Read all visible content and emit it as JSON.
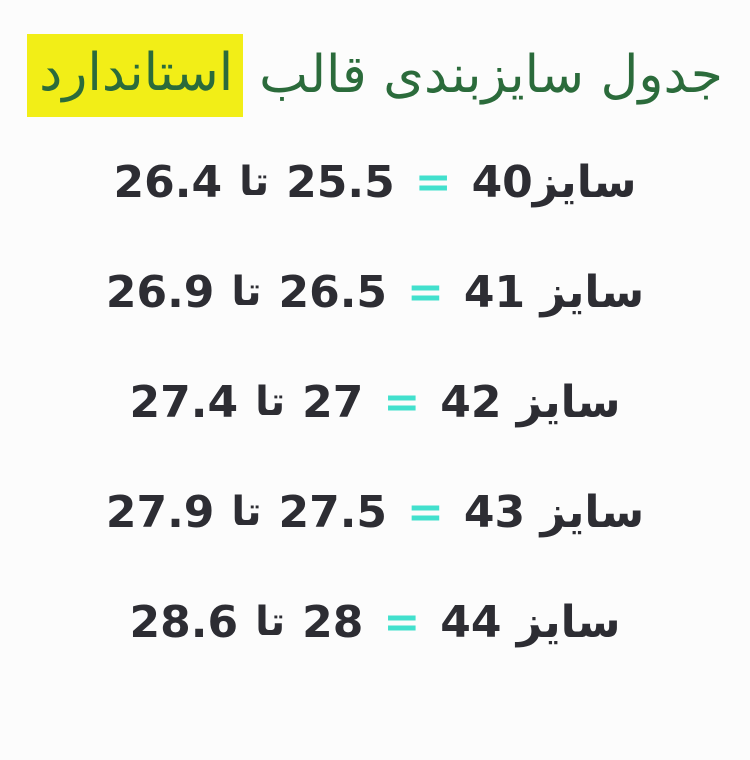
{
  "title": {
    "prefix": "جدول سایزبندی قالب",
    "highlighted_word": "استاندارد"
  },
  "size_table": {
    "rows": [
      {
        "size_label": "سایز40",
        "equals": "=",
        "from": "25.5",
        "to_word": "تا",
        "to": "26.4"
      },
      {
        "size_label": "سایز 41",
        "equals": "=",
        "from": "26.5",
        "to_word": "تا",
        "to": "26.9"
      },
      {
        "size_label": "سایز 42",
        "equals": "=",
        "from": "27",
        "to_word": "تا",
        "to": "27.4"
      },
      {
        "size_label": "سایز 43",
        "equals": "=",
        "from": "27.5",
        "to_word": "تا",
        "to": "27.9"
      },
      {
        "size_label": "سایز 44",
        "equals": "=",
        "from": "28",
        "to_word": "تا",
        "to": "28.6"
      }
    ]
  },
  "colors": {
    "background": "#fcfcfc",
    "title_green": "#2b6b3b",
    "highlight_yellow": "#f2ee17",
    "row_text": "#2d2d33",
    "equals_teal": "#42e0cd"
  }
}
